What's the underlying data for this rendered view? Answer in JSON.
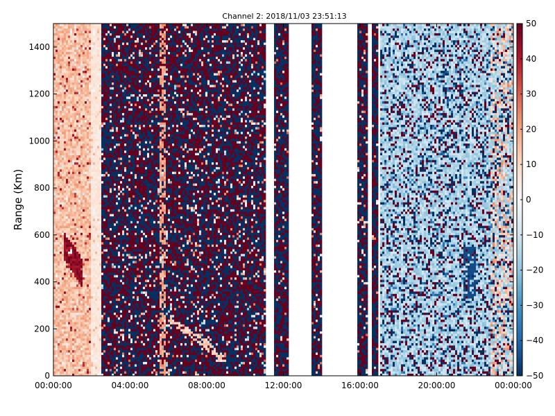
{
  "chart_data": {
    "type": "heatmap",
    "title": "Channel 2: 2018/11/03 23:51:13",
    "xlabel": "",
    "ylabel": "Range (Km)",
    "x_ticks": [
      "00:00:00",
      "04:00:00",
      "08:00:00",
      "12:00:00",
      "16:00:00",
      "20:00:00",
      "00:00:00"
    ],
    "x_tick_hours": [
      0,
      4,
      8,
      12,
      16,
      20,
      24
    ],
    "xlim_hours": [
      0,
      24
    ],
    "y_ticks": [
      0,
      200,
      400,
      600,
      800,
      1000,
      1200,
      1400
    ],
    "ylim": [
      0,
      1500
    ],
    "colorbar": {
      "ticks": [
        -50,
        -40,
        -30,
        -20,
        -10,
        0,
        10,
        20,
        30,
        40,
        50
      ],
      "range": [
        -50,
        50
      ],
      "colormap": "RdBu_r",
      "low_color": "#053061",
      "mid_color": "#f7f7f7",
      "high_color": "#67001f"
    },
    "data_gaps_hours": [
      [
        11.1,
        11.5
      ],
      [
        12.3,
        13.5
      ],
      [
        14.0,
        15.9
      ],
      [
        16.4,
        16.65
      ],
      [
        16.9,
        17.05
      ]
    ],
    "regions": [
      {
        "hours": [
          0,
          2.5
        ],
        "description": "mostly positive values (0 to 20) with strong positive streaks"
      },
      {
        "hours": [
          2.5,
          11.1
        ],
        "description": "noisy saturated values alternating near -50 and +50"
      },
      {
        "hours": [
          17.05,
          24
        ],
        "description": "mostly negative values (-30 to 0)"
      }
    ],
    "grid": false
  }
}
